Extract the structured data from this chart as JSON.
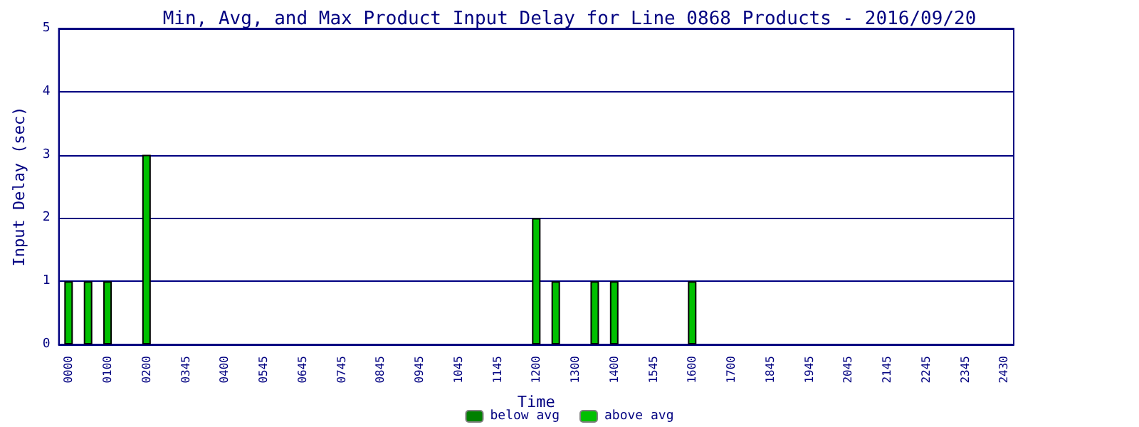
{
  "chart_data": {
    "type": "bar",
    "title": "Min, Avg, and Max Product Input Delay for Line 0868 Products - 2016/09/20",
    "xlabel": "Time",
    "ylabel": "Input Delay (sec)",
    "categories": [
      "0000",
      null,
      "0100",
      null,
      "0200",
      null,
      "0345",
      null,
      "0400",
      null,
      "0545",
      null,
      "0645",
      null,
      "0745",
      null,
      "0845",
      null,
      "0945",
      null,
      "1045",
      null,
      "1145",
      null,
      "1200",
      null,
      "1300",
      null,
      "1400",
      null,
      "1545",
      null,
      "1600",
      null,
      "1700",
      null,
      "1845",
      null,
      "1945",
      null,
      "2045",
      null,
      "2145",
      null,
      "2245",
      null,
      "2345",
      null,
      "2430"
    ],
    "stacked": true,
    "series": [
      {
        "name": "below avg",
        "color": "#008000",
        "values": [
          null,
          null,
          null,
          null,
          null,
          null,
          null,
          null,
          null,
          null,
          null,
          null,
          null,
          null,
          null,
          null,
          null,
          null,
          null,
          null,
          null,
          null,
          null,
          null,
          null,
          null,
          null,
          null,
          null,
          null,
          null,
          null,
          null,
          null,
          null,
          null,
          null,
          null,
          null,
          null,
          null,
          null,
          null,
          null,
          null,
          null,
          null,
          null,
          null
        ]
      },
      {
        "name": "above avg",
        "color": "#00c000",
        "values": [
          1,
          1,
          1,
          null,
          3,
          null,
          null,
          null,
          null,
          null,
          null,
          null,
          null,
          null,
          null,
          null,
          null,
          null,
          null,
          null,
          null,
          null,
          null,
          null,
          2,
          1,
          null,
          1,
          1,
          null,
          null,
          null,
          1,
          null,
          null,
          null,
          null,
          null,
          null,
          null,
          null,
          null,
          null,
          null,
          null,
          null,
          null,
          null,
          null
        ]
      }
    ],
    "ylim": [
      0,
      5
    ],
    "yticks": [
      0,
      1,
      2,
      3,
      4,
      5
    ],
    "grid": "y",
    "legend": "bottom"
  }
}
